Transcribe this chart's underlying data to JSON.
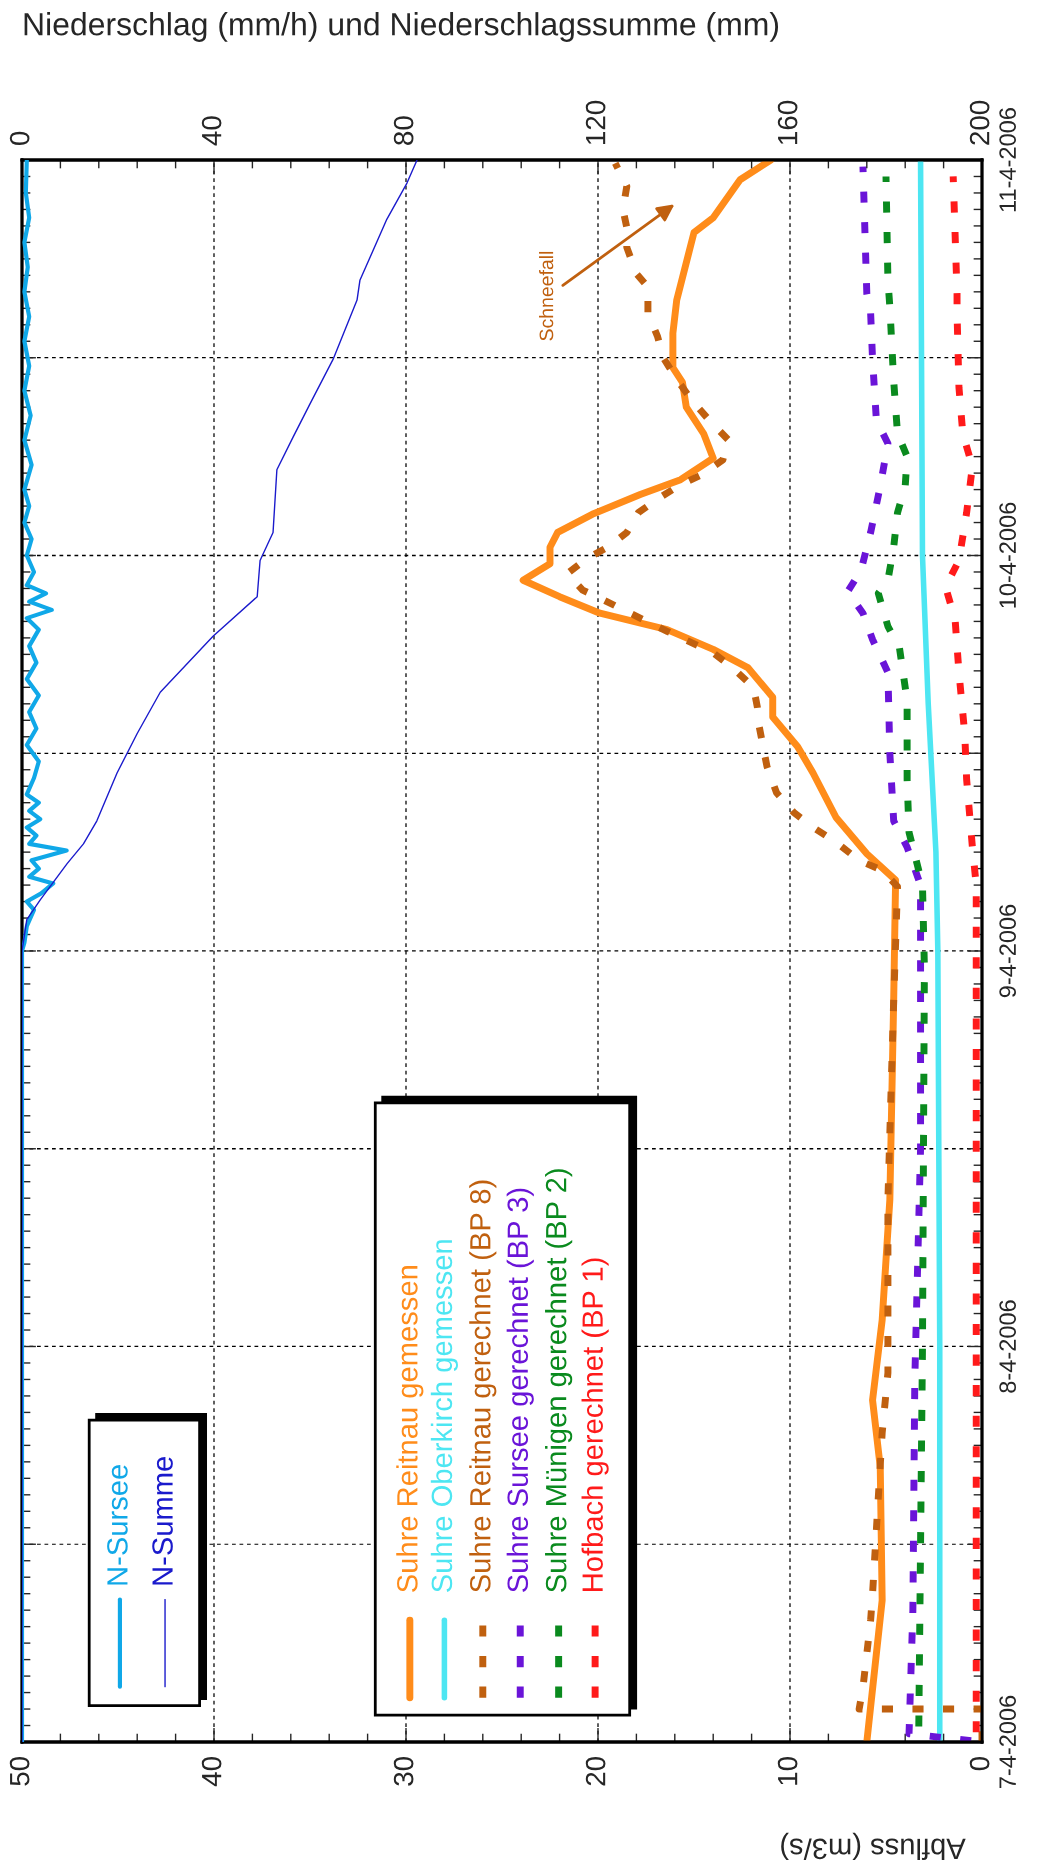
{
  "chart_data": {
    "type": "line",
    "orientation": "horizontal",
    "xlim": [
      50,
      0
    ],
    "xticks": [
      0,
      10,
      20,
      30,
      40,
      50
    ],
    "x2lim": [
      0,
      200
    ],
    "x2ticks": [
      0,
      40,
      80,
      120,
      160,
      200
    ],
    "ylim": [
      "2006-04-07T00:00",
      "2006-04-11T00:00"
    ],
    "yticks": [
      {
        "value": "2006-04-07T00:00",
        "label": "7-4-2006"
      },
      {
        "value": "2006-04-07T12:00",
        "label": null
      },
      {
        "value": "2006-04-08T00:00",
        "label": "8-4-2006"
      },
      {
        "value": "2006-04-08T12:00",
        "label": null
      },
      {
        "value": "2006-04-09T00:00",
        "label": "9-4-2006"
      },
      {
        "value": "2006-04-09T12:00",
        "label": null
      },
      {
        "value": "2006-04-10T00:00",
        "label": "10-4-2006"
      },
      {
        "value": "2006-04-10T12:00",
        "label": null
      },
      {
        "value": "2006-04-11T00:00",
        "label": "11-4-2006"
      }
    ],
    "xlabel": "Abfluss (m3/s)",
    "x2label": "Niederschlag (mm/h) und Niederschlagssumme (mm)",
    "grid": true,
    "legend": "bottom left",
    "annotations": [
      "Schneefall"
    ],
    "series": [
      {
        "name": "Suhre Reitnau gemessen",
        "color": "#ff8c1a",
        "line_style": "solid",
        "values": [
          6.0,
          5.2,
          5.3,
          5.7,
          5.2,
          4.8,
          4.6,
          4.5,
          6.0,
          7.6,
          8.8,
          9.6,
          10.9,
          10.9,
          12.2,
          14.0,
          16.4,
          19.9,
          22.0,
          23.9,
          23.2,
          22.5,
          22.5,
          22.1,
          20.3,
          17.8,
          15.7,
          14.0,
          14.5,
          15.4,
          15.6,
          16.1,
          16.1,
          15.9,
          15.0,
          14.0,
          12.6,
          11.0
        ],
        "x": [
          "2006-04-07T00:00",
          "2006-04-07T08:36",
          "2006-04-07T16:42",
          "2006-04-07T20:45",
          "2006-04-08T01:36",
          "2006-04-08T08:54",
          "2006-04-08T21:00",
          "2006-04-09T04:18",
          "2006-04-09T05:54",
          "2006-04-09T08:06",
          "2006-04-09T10:48",
          "2006-04-09T12:24",
          "2006-04-09T14:12",
          "2006-04-09T15:24",
          "2006-04-09T17:12",
          "2006-04-09T18:18",
          "2006-04-09T19:30",
          "2006-04-09T20:30",
          "2006-04-09T21:30",
          "2006-04-09T22:30",
          "2006-04-09T23:00",
          "2006-04-09T23:30",
          "2006-04-10T00:30",
          "2006-04-10T01:24",
          "2006-04-10T02:30",
          "2006-04-10T03:42",
          "2006-04-10T04:36",
          "2006-04-10T05:54",
          "2006-04-10T07:24",
          "2006-04-10T09:00",
          "2006-04-10T10:30",
          "2006-04-10T11:24",
          "2006-04-10T13:30",
          "2006-04-10T15:30",
          "2006-04-10T19:36",
          "2006-04-10T20:30",
          "2006-04-10T22:48",
          "2006-04-11T00:00"
        ]
      },
      {
        "name": "Suhre Oberkirch gemessen",
        "color": "#4de6f2",
        "line_style": "solid",
        "values": [
          2.2,
          2.2,
          2.3,
          2.4,
          2.8,
          3.1,
          3.2
        ],
        "x": [
          "2006-04-07T00:00",
          "2006-04-08T00:00",
          "2006-04-09T00:00",
          "2006-04-09T06:00",
          "2006-04-09T15:00",
          "2006-04-10T00:00",
          "2006-04-11T00:00"
        ]
      },
      {
        "name": "Suhre Reitnau gerechnet (BP 8)",
        "color": "#c0600f",
        "line_style": "dotted",
        "values": [
          0,
          0,
          6.4,
          6.2,
          5.8,
          5.7,
          5.2,
          4.9,
          4.9,
          4.6,
          4.4,
          5.2,
          6.4,
          7.6,
          8.8,
          9.8,
          10.7,
          11.2,
          11.6,
          11.7,
          11.9,
          13.0,
          14.0,
          16.4,
          18.5,
          19.7,
          20.8,
          21.6,
          20.6,
          19.5,
          18.5,
          17.9,
          16.8,
          15.7,
          14.6,
          13.5,
          13.2,
          14.2,
          15.1,
          15.9,
          16.6,
          16.9,
          17.4,
          17.4,
          18.0,
          18.5,
          18.5,
          18.7,
          18.5,
          19.1
        ],
        "x": [
          "2006-04-07T00:00",
          "2006-04-07T02:00",
          "2006-04-07T02:00",
          "2006-04-07T03:18",
          "2006-04-07T07:24",
          "2006-04-07T09:00",
          "2006-04-07T18:45",
          "2006-04-07T22:24",
          "2006-04-08T08:54",
          "2006-04-08T21:00",
          "2006-04-09T03:54",
          "2006-04-09T04:54",
          "2006-04-09T05:30",
          "2006-04-09T06:36",
          "2006-04-09T07:30",
          "2006-04-09T08:24",
          "2006-04-09T09:36",
          "2006-04-09T11:12",
          "2006-04-09T13:36",
          "2006-04-09T14:48",
          "2006-04-09T16:00",
          "2006-04-09T17:12",
          "2006-04-09T18:06",
          "2006-04-09T19:24",
          "2006-04-09T20:36",
          "2006-04-09T21:18",
          "2006-04-09T21:54",
          "2006-04-09T22:54",
          "2006-04-09T23:48",
          "2006-04-10T00:30",
          "2006-04-10T01:24",
          "2006-04-10T02:36",
          "2006-04-10T03:30",
          "2006-04-10T04:18",
          "2006-04-10T04:54",
          "2006-04-10T05:48",
          "2006-04-10T07:00",
          "2006-04-10T08:12",
          "2006-04-10T09:24",
          "2006-04-10T10:42",
          "2006-04-10T12:00",
          "2006-04-10T13:18",
          "2006-04-10T14:42",
          "2006-04-10T16:18",
          "2006-04-10T17:06",
          "2006-04-10T18:42",
          "2006-04-10T19:54",
          "2006-04-10T21:00",
          "2006-04-10T22:24",
          "2006-04-10T23:48"
        ]
      },
      {
        "name": "Suhre Sursee gerechnet (BP 3)",
        "color": "#6a14d8",
        "line_style": "dotted",
        "values": [
          0,
          3.8,
          3.6,
          3.5,
          3.2,
          3.2,
          3.9,
          4.6,
          4.8,
          4.9,
          5.7,
          6.2,
          7.0,
          6.3,
          5.8,
          5.3,
          4.9,
          5.5,
          5.7,
          5.8,
          6.0,
          6.2
        ],
        "x": [
          "2006-04-07T00:00",
          "2006-04-07T00:30",
          "2006-04-07T08:00",
          "2006-04-07T22:00",
          "2006-04-08T12:00",
          "2006-04-09T04:00",
          "2006-04-09T06:18",
          "2006-04-09T07:54",
          "2006-04-09T12:00",
          "2006-04-09T16:54",
          "2006-04-09T18:54",
          "2006-04-09T20:30",
          "2006-04-09T21:48",
          "2006-04-09T23:06",
          "2006-04-10T01:24",
          "2006-04-10T04:12",
          "2006-04-10T06:48",
          "2006-04-10T08:12",
          "2006-04-10T11:54",
          "2006-04-10T14:42",
          "2006-04-10T15:54",
          "2006-04-10T23:36"
        ]
      },
      {
        "name": "Suhre Münigen gerechnet (BP 2)",
        "color": "#0a8a1e",
        "line_style": "dotted",
        "values": [
          3.3,
          3.1,
          3.0,
          3.1,
          3.8,
          3.9,
          3.9,
          4.3,
          4.9,
          5.4,
          4.9,
          4.6,
          4.4,
          4.0,
          3.9,
          4.4,
          4.6,
          4.8,
          4.9,
          5.0
        ],
        "x": [
          "2006-04-07T00:00",
          "2006-04-08T00:00",
          "2006-04-08T23:00",
          "2006-04-09T04:00",
          "2006-04-09T07:12",
          "2006-04-09T10:24",
          "2006-04-09T15:12",
          "2006-04-09T18:24",
          "2006-04-09T19:42",
          "2006-04-09T21:42",
          "2006-04-09T22:30",
          "2006-04-10T00:30",
          "2006-04-10T02:36",
          "2006-04-10T04:12",
          "2006-04-10T06:00",
          "2006-04-10T07:24",
          "2006-04-10T10:36",
          "2006-04-10T15:06",
          "2006-04-10T16:42",
          "2006-04-10T23:00"
        ]
      },
      {
        "name": "Hofbach gerechnet (BP 1)",
        "color": "#ff1a1a",
        "line_style": "dotted",
        "values": [
          0.3,
          0.3,
          0.3,
          0.5,
          0.8,
          0.9,
          1.2,
          1.4,
          1.9,
          1.2,
          0.8,
          0.5,
          1.0,
          1.2,
          1.3,
          1.3,
          1.5
        ],
        "x": [
          "2006-04-07T00:00",
          "2006-04-08T00:00",
          "2006-04-09T04:00",
          "2006-04-09T06:18",
          "2006-04-09T10:24",
          "2006-04-09T13:12",
          "2006-04-09T16:54",
          "2006-04-09T20:06",
          "2006-04-09T22:06",
          "2006-04-09T23:42",
          "2006-04-10T02:36",
          "2006-04-10T05:24",
          "2006-04-10T07:24",
          "2006-04-10T10:12",
          "2006-04-10T14:42",
          "2006-04-10T15:54",
          "2006-04-10T23:00"
        ]
      },
      {
        "name": "N-Sursee",
        "color": "#10a8e8",
        "line_style": "solid",
        "axis": "x2",
        "values": [
          0,
          0,
          0.5,
          1.0,
          2.5,
          1.0,
          4.0,
          6.5,
          1.5,
          3.5,
          2.0,
          9.3,
          1.5,
          3.0,
          1.0,
          3.8,
          1.5,
          3.5,
          1.0,
          2.5,
          3.5,
          1.0,
          3.0,
          1.5,
          3.5,
          1.0,
          3.0,
          1.5,
          3.5,
          1.0,
          6.2,
          1.5,
          5.0,
          1.0,
          2.5,
          1.0,
          2.0,
          0.5,
          1.5,
          0.5,
          2.0,
          0.5,
          1.8,
          0.5,
          1.5,
          0.5,
          1.5,
          0.5,
          1.2,
          0.5,
          1.5,
          0.8,
          1.0
        ],
        "x": [
          "2006-04-07T00:00",
          "2006-04-09T00:00",
          "2006-04-09T00:30",
          "2006-04-09T01:30",
          "2006-04-09T02:30",
          "2006-04-09T03:00",
          "2006-04-09T03:30",
          "2006-04-09T04:06",
          "2006-04-09T04:30",
          "2006-04-09T05:00",
          "2006-04-09T05:30",
          "2006-04-09T06:06",
          "2006-04-09T06:30",
          "2006-04-09T07:00",
          "2006-04-09T07:30",
          "2006-04-09T08:00",
          "2006-04-09T08:30",
          "2006-04-09T09:00",
          "2006-04-09T09:30",
          "2006-04-09T10:30",
          "2006-04-09T11:30",
          "2006-04-09T12:30",
          "2006-04-09T13:30",
          "2006-04-09T14:30",
          "2006-04-09T15:30",
          "2006-04-09T16:30",
          "2006-04-09T17:30",
          "2006-04-09T18:30",
          "2006-04-09T19:30",
          "2006-04-09T20:12",
          "2006-04-09T20:42",
          "2006-04-09T21:12",
          "2006-04-09T21:42",
          "2006-04-09T22:12",
          "2006-04-09T23:00",
          "2006-04-10T00:00",
          "2006-04-10T01:00",
          "2006-04-10T02:00",
          "2006-04-10T03:00",
          "2006-04-10T04:00",
          "2006-04-10T05:30",
          "2006-04-10T07:00",
          "2006-04-10T08:30",
          "2006-04-10T10:00",
          "2006-04-10T11:30",
          "2006-04-10T13:00",
          "2006-04-10T14:30",
          "2006-04-10T16:00",
          "2006-04-10T17:30",
          "2006-04-10T19:00",
          "2006-04-10T20:30",
          "2006-04-10T22:00",
          "2006-04-11T00:00"
        ]
      },
      {
        "name": "N-Summe",
        "color": "#1a1acc",
        "line_style": "solid",
        "axis": "x2",
        "values": [
          0,
          0,
          1.0,
          3.8,
          9.4,
          12.8,
          15.6,
          19.8,
          24.0,
          28.8,
          39.8,
          49.0,
          49.6,
          52.3,
          53.1,
          56.5,
          60.0,
          64.8,
          69.8,
          70.4,
          76.0,
          80.2,
          82.3
        ],
        "x": [
          "2006-04-07T00:00",
          "2006-04-09T00:00",
          "2006-04-09T01:54",
          "2006-04-09T03:06",
          "2006-04-09T05:18",
          "2006-04-09T06:30",
          "2006-04-09T07:54",
          "2006-04-09T10:48",
          "2006-04-09T13:12",
          "2006-04-09T15:42",
          "2006-04-09T19:06",
          "2006-04-09T21:30",
          "2006-04-09T23:42",
          "2006-04-10T01:24",
          "2006-04-10T05:12",
          "2006-04-10T07:12",
          "2006-04-10T09:12",
          "2006-04-10T11:54",
          "2006-04-10T15:30",
          "2006-04-10T16:42",
          "2006-04-10T20:24",
          "2006-04-10T22:36",
          "2006-04-11T00:00"
        ]
      }
    ]
  }
}
